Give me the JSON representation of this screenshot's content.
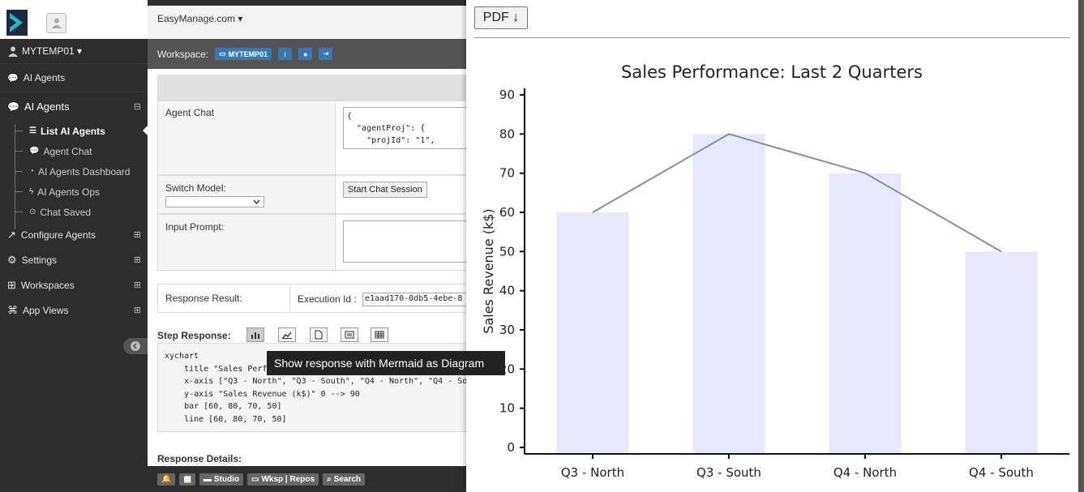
{
  "header": {
    "brand": "EasyManage.com ▾"
  },
  "sidebar": {
    "user": "MYTEMP01 ▾",
    "top_link": "AI Agents",
    "section": "AI Agents",
    "section_toggle": "⊟",
    "sub_items": [
      {
        "label": "List AI Agents",
        "active": true
      },
      {
        "label": "Agent Chat",
        "active": false
      },
      {
        "label": "AI Agents Dashboard",
        "active": false
      },
      {
        "label": "AI Agents Ops",
        "active": false
      },
      {
        "label": "Chat Saved",
        "active": false
      }
    ],
    "groups": [
      {
        "label": "Configure Agents",
        "toggle": "⊞"
      },
      {
        "label": "Settings",
        "toggle": "⊞"
      },
      {
        "label": "Workspaces",
        "toggle": "⊞"
      },
      {
        "label": "App Views",
        "toggle": "⊞"
      }
    ]
  },
  "workspace": {
    "label": "Workspace:",
    "chip": "MYTEMP01"
  },
  "form": {
    "agent_chat_label": "Agent Chat",
    "agent_chat_value": "{\n  \"agentProj\": {\n    \"projId\": \"1\",",
    "switch_model_label": "Switch Model:",
    "start_chat_button": "Start Chat Session",
    "input_prompt_label": "Input Prompt:",
    "response_result_label": "Response Result:",
    "execution_id_label": "Execution Id :",
    "execution_id_value": "e1aad170-0db5-4ebe-8",
    "step_response_label": "Step Response:",
    "step_response_text": "xychart\n    title \"Sales Perf\n    x-axis [\"Q3 - North\", \"Q3 - South\", \"Q4 - North\", \"Q4 - Sou\n    y-axis \"Sales Revenue (k$)\" 0 --> 90\n    bar [60, 80, 70, 50]\n    line [60, 80, 70, 50]",
    "response_details_label": "Response Details:"
  },
  "tooltip": "Show response with Mermaid as Diagram",
  "bottom_bar": [
    "Studio",
    "Wksp | Repos",
    "Search"
  ],
  "panel": {
    "pdf_button": "PDF ↓"
  },
  "colors": {
    "bar": "#e8e8fa",
    "line": "#8490a0",
    "sidebar": "#2d2d2d",
    "chip": "#337ab7"
  },
  "chart_data": {
    "type": "bar",
    "title": "Sales Performance: Last 2 Quarters",
    "categories": [
      "Q3 - North",
      "Q3 - South",
      "Q4 - North",
      "Q4 - South"
    ],
    "series": [
      {
        "type": "bar",
        "values": [
          60,
          80,
          70,
          50
        ]
      },
      {
        "type": "line",
        "values": [
          60,
          80,
          70,
          50
        ]
      }
    ],
    "xlabel": "",
    "ylabel": "Sales Revenue (k$)",
    "ylim": [
      0,
      90
    ],
    "yticks": [
      0,
      10,
      20,
      30,
      40,
      50,
      60,
      70,
      80,
      90
    ],
    "grid": false,
    "legend": false
  }
}
